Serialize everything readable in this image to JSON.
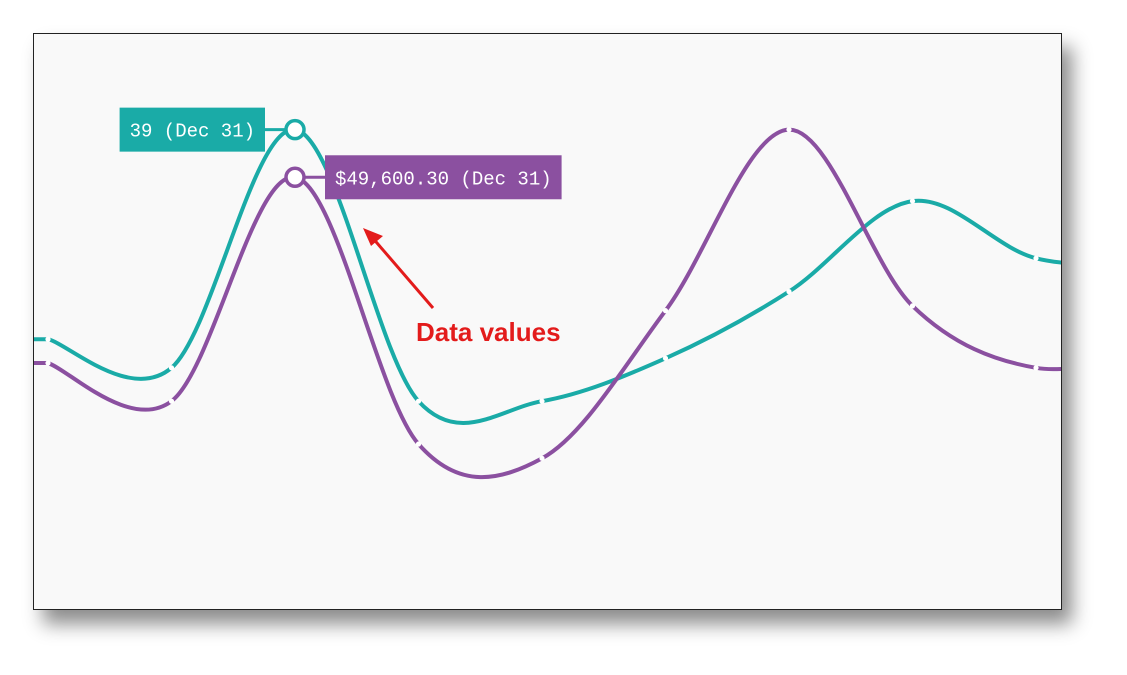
{
  "chart_data": {
    "type": "line",
    "series": [
      {
        "color": "#1aaba7",
        "values": [
          56,
          50,
          100,
          43,
          43,
          52,
          66,
          85,
          73,
          72
        ],
        "callout": "39 (Dec 31)"
      },
      {
        "color": "#8b50a0",
        "values": [
          51,
          43,
          90,
          34,
          31,
          62,
          100,
          63,
          50,
          54
        ],
        "callout": "$49,600.30 (Dec 31)"
      }
    ],
    "ylim": [
      0,
      110
    ],
    "grid": false
  },
  "annotation": {
    "text": "Data values",
    "color": "#e31b1b"
  },
  "colors": {
    "panel_background": "#f9f9f9",
    "panel_border": "#222222"
  }
}
